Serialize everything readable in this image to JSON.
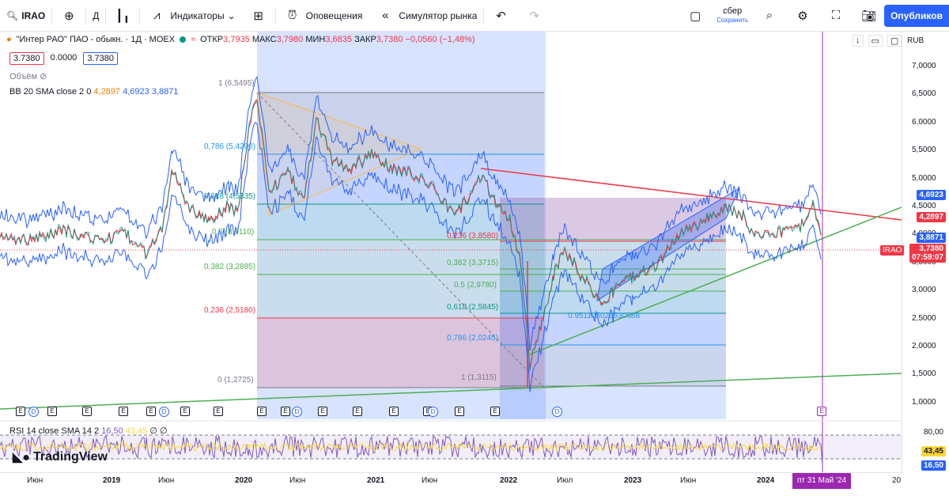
{
  "toolbar": {
    "symbol": "IRAO",
    "interval": "Д",
    "indicators": "Индикаторы",
    "alerts": "Оповещения",
    "replay": "Симулятор рынка",
    "layout_name": "сбер",
    "layout_saved": "Сохранить",
    "publish": "Опубликов"
  },
  "legend": {
    "title": "\"Интер РАО\" ПАО - обыкн. · 1Д · MOEX",
    "open_label": "ОТКР",
    "open": "3,7935",
    "high_label": "МАКС",
    "high": "3,7980",
    "low_label": "МИН",
    "low": "3,6835",
    "close_label": "ЗАКР",
    "close": "3,7380",
    "change": "−0,0560 (−1,48%)",
    "bid": "3.7380",
    "spread": "0.0000",
    "ask": "3.7380",
    "volume": "Объём",
    "bb": "BB 20 SMA close 2 0",
    "bb_v1": "4,2897",
    "bb_v2": "4,6923",
    "bb_v3": "3,8871",
    "rsi": "RSI 14 close SMA 14 2",
    "rsi_v1": "16,50",
    "rsi_v2": "43,45",
    "rsi_v3": "∅ ∅"
  },
  "logo": "TradingView",
  "right_axis": {
    "currency": "RUB",
    "ticks": [
      "7,0000",
      "6,5000",
      "6,0000",
      "5,5000",
      "5,0000",
      "4,5000",
      "4,0000",
      "3,5000",
      "3,0000",
      "2,5000",
      "2,0000",
      "1,5000",
      "1,0000"
    ],
    "rsi_ticks": [
      "80,00"
    ],
    "badge_upper": "4,6923",
    "badge_mid": "4,2897",
    "badge_lower": "3,8871",
    "badge_price": "3,7380",
    "badge_timer": "07:59:07",
    "symbol_tag": "IRAO",
    "rsi_badge_sma": "43,45",
    "rsi_badge": "16,50"
  },
  "bottom_axis": {
    "labels": [
      "Июн",
      "2019",
      "Июн",
      "2020",
      "Июн",
      "2021",
      "Июн",
      "2022",
      "Июл",
      "2023",
      "Июн",
      "2024",
      "20"
    ],
    "cursor_date": "пт 31 Май '24"
  },
  "fib_left": [
    "1 (6,5495)",
    "0,786 (5,4200)",
    "0,618 (4,5335)",
    "0,5 (3,9110)",
    "0,382 (3,2885)",
    "0,236 (2,5180)",
    "0 (1,2725)"
  ],
  "fib_right": [
    "0,236 (3,8580)",
    "0,382 (3,3715)",
    "0,5 (2,9780)",
    "0,618 (2,5845)",
    "0,786 (2,0245)",
    "1 (1,3115)"
  ],
  "trend_note": "0.951105026530688",
  "colors": {
    "accent": "#2962ff",
    "down": "#f23645",
    "up": "#089981"
  }
}
